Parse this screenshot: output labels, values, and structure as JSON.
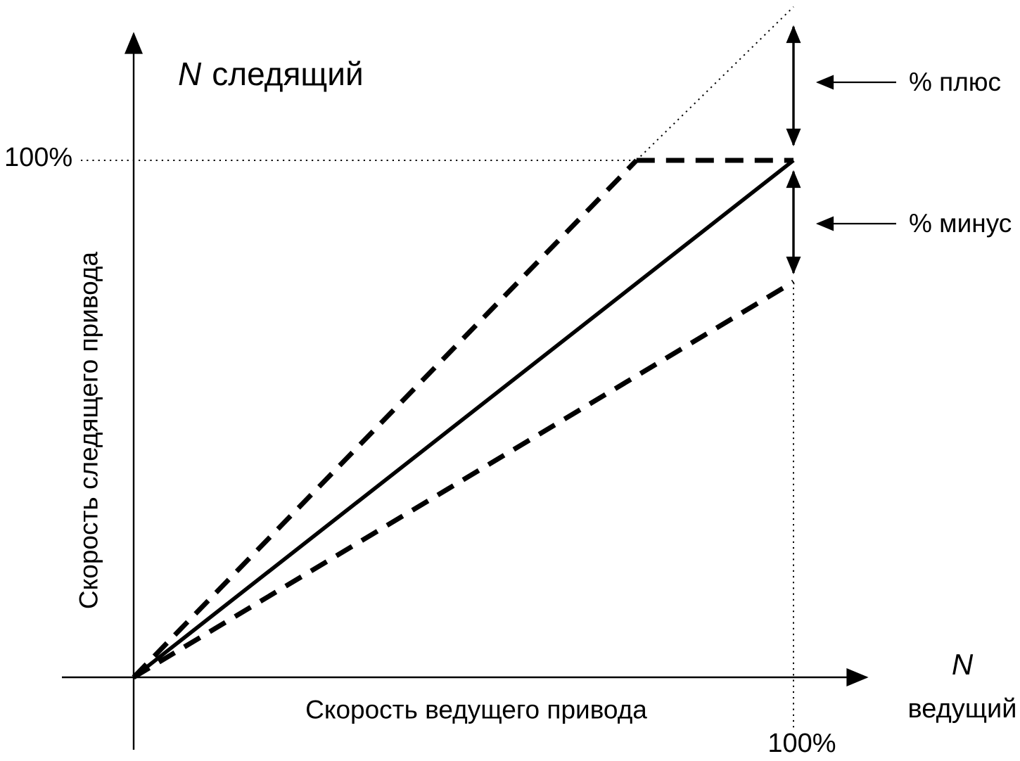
{
  "figure": {
    "title_n": "N",
    "title_word": "следящий",
    "y_tick": "100%",
    "x_tick": "100%",
    "y_label": "Скорость следящего привода",
    "x_label": "Скорость ведущего привода",
    "x_end_n": "N",
    "x_end_word": "ведущий",
    "plus_label": "% плюс",
    "minus_label": "% минус",
    "line_color": "#000000",
    "background_color": "#ffffff"
  },
  "chart_data": {
    "type": "line",
    "title": "N следящий",
    "xlabel": "Скорость ведущего привода",
    "ylabel": "Скорость следящего привода",
    "x_axis_arrow_label": "N ведущий",
    "x_ticks": [
      "100%"
    ],
    "y_ticks": [
      "100%"
    ],
    "xlim_percent": [
      0,
      112
    ],
    "ylim_percent": [
      0,
      132
    ],
    "grid": false,
    "legend": false,
    "series": [
      {
        "name": "guide-100-horizontal",
        "style": "dotted",
        "points": [
          [
            -8,
            100
          ],
          [
            76.2,
            100
          ]
        ]
      },
      {
        "name": "guide-100-vertical",
        "style": "dotted",
        "points": [
          [
            100,
            76.5
          ],
          [
            100,
            -10
          ]
        ]
      },
      {
        "name": "upper-tolerance-extension",
        "style": "dotted",
        "points": [
          [
            76.2,
            100
          ],
          [
            100,
            129.7
          ]
        ]
      },
      {
        "name": "upper-tolerance-band",
        "style": "dashed",
        "points": [
          [
            0,
            0
          ],
          [
            76.2,
            100
          ]
        ]
      },
      {
        "name": "upper-tolerance-clamp",
        "style": "dashed",
        "points": [
          [
            76.2,
            100
          ],
          [
            100,
            100
          ]
        ]
      },
      {
        "name": "lower-tolerance-band",
        "style": "dashed",
        "points": [
          [
            0,
            0
          ],
          [
            100,
            76.5
          ]
        ]
      },
      {
        "name": "nominal-ratio",
        "style": "solid",
        "points": [
          [
            0,
            0
          ],
          [
            100,
            100
          ]
        ]
      }
    ],
    "annotations": [
      {
        "label": "% плюс",
        "arrow_y_span_percent": [
          100,
          129.7
        ]
      },
      {
        "label": "% минус",
        "arrow_y_span_percent": [
          76.5,
          100
        ]
      }
    ]
  }
}
